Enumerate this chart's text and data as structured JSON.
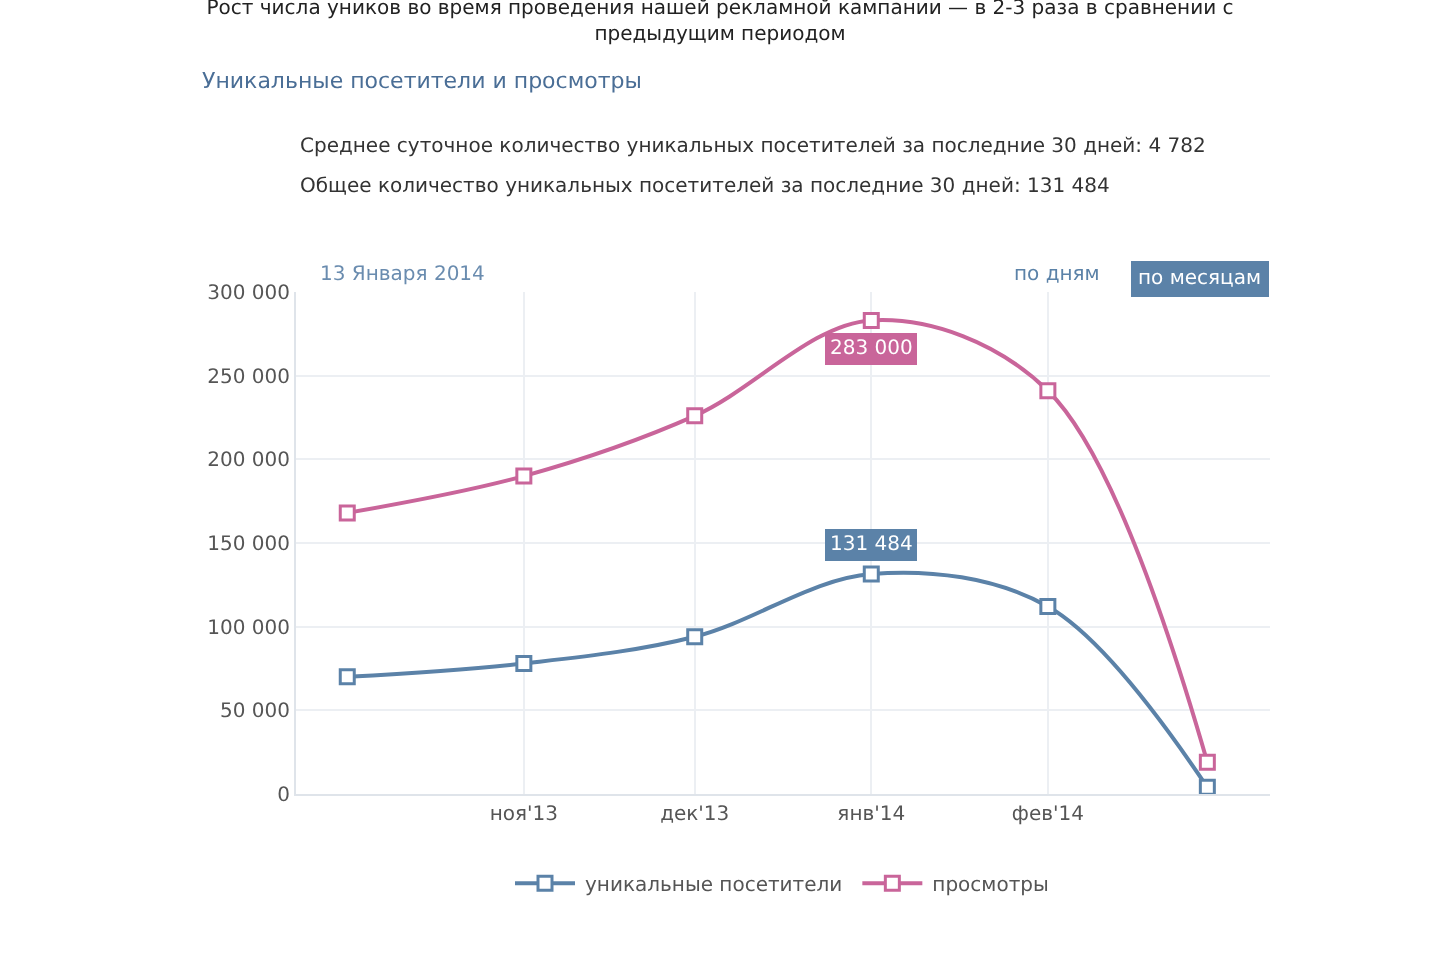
{
  "chart_data": {
    "type": "line",
    "title": "Рост числа уников во время проведения нашей рекламной кампании — в 2-3 раза в сравнении с предыдущим периодом",
    "subtitle": "Уникальные посетители и просмотры",
    "annotations": [
      "Среднее суточное количество уникальных посетителей за последние 30 дней: 4 782",
      "Общее количество уникальных посетителей за последние 30 дней: 131 484",
      "13 Января 2014",
      "по дням",
      "по месяцам"
    ],
    "x": [
      "2013-10",
      "2013-11",
      "2013-12",
      "2014-01",
      "2014-02",
      "2014-03"
    ],
    "series": [
      {
        "name": "уникальные посетители",
        "color": "#5b82a8",
        "values": [
          70000,
          78000,
          94000,
          131484,
          112000,
          4000
        ],
        "value_labels": [
          null,
          null,
          null,
          "131 484",
          null,
          null
        ]
      },
      {
        "name": "просмотры",
        "color": "#c9659a",
        "values": [
          168000,
          190000,
          226000,
          283000,
          241000,
          19000
        ],
        "value_labels": [
          null,
          null,
          null,
          "283 000",
          null,
          null
        ]
      }
    ],
    "xlim": [
      "2013-09-22",
      "2014-03-12"
    ],
    "xticks": [
      {
        "value": "2013-11",
        "label": "ноя'13"
      },
      {
        "value": "2013-12",
        "label": "дек'13"
      },
      {
        "value": "2014-01",
        "label": "янв'14"
      },
      {
        "value": "2014-02",
        "label": "фев'14"
      }
    ],
    "ylim": [
      0,
      300000
    ],
    "yticks": [
      0,
      50000,
      100000,
      150000,
      200000,
      250000,
      300000
    ],
    "grid": true,
    "legend": "bottom",
    "marker": "square",
    "line_style": "solid"
  }
}
